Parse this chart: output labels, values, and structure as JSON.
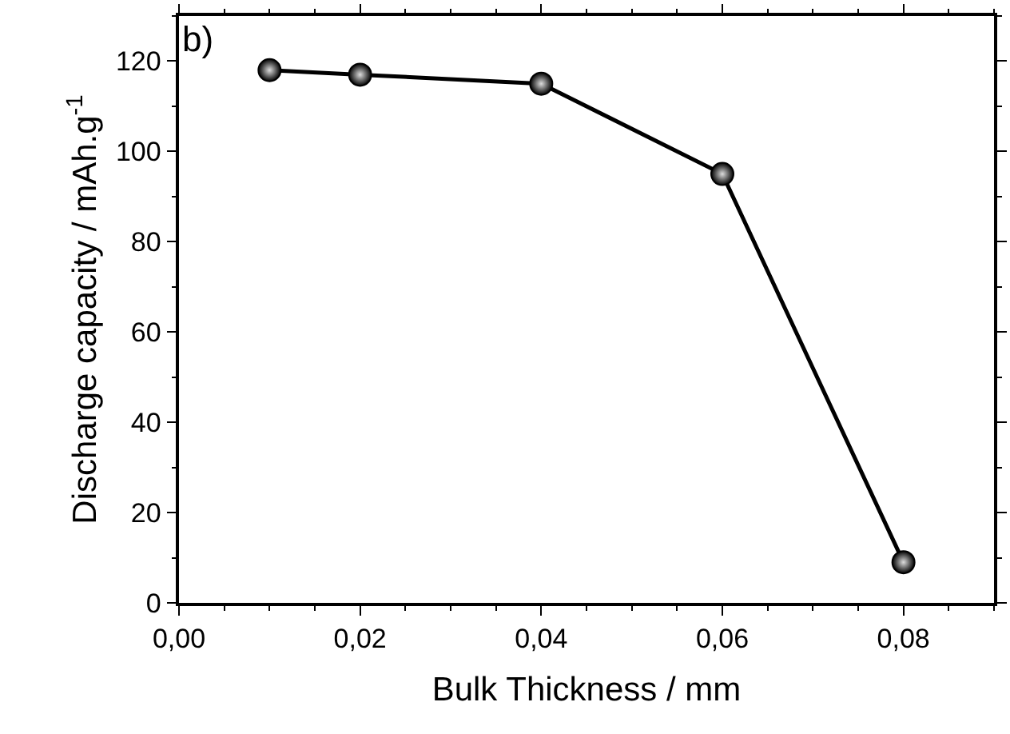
{
  "chart_data": {
    "type": "line",
    "xlabel": "Bulk Thickness / mm",
    "ylabel": "Discharge capacity / mAh.g$^{-1}$",
    "annotations": [
      "b)"
    ],
    "x": [
      0.01,
      0.02,
      0.04,
      0.06,
      0.08
    ],
    "series": [
      {
        "color": "#000000",
        "values": [
          118,
          117,
          115,
          95,
          9
        ]
      }
    ],
    "xlim": [
      0,
      0.09
    ],
    "ylim": [
      0,
      130
    ],
    "xticks": [
      {
        "value": 0,
        "label": "0,00"
      },
      {
        "value": 0.02,
        "label": "0,02"
      },
      {
        "value": 0.04,
        "label": "0,04"
      },
      {
        "value": 0.06,
        "label": "0,06"
      },
      {
        "value": 0.08,
        "label": "0,08"
      }
    ],
    "yticks": [
      0,
      20,
      40,
      60,
      80,
      100,
      120
    ],
    "marker": "circle",
    "line_style": "solid"
  }
}
